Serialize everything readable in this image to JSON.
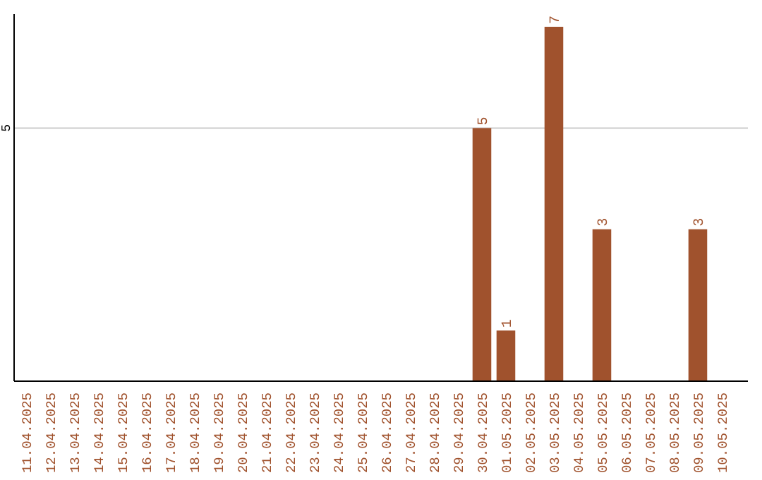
{
  "chart_data": {
    "type": "bar",
    "categories": [
      "11.04.2025",
      "12.04.2025",
      "13.04.2025",
      "14.04.2025",
      "15.04.2025",
      "16.04.2025",
      "17.04.2025",
      "18.04.2025",
      "19.04.2025",
      "20.04.2025",
      "21.04.2025",
      "22.04.2025",
      "23.04.2025",
      "24.04.2025",
      "25.04.2025",
      "26.04.2025",
      "27.04.2025",
      "28.04.2025",
      "29.04.2025",
      "30.04.2025",
      "01.05.2025",
      "02.05.2025",
      "03.05.2025",
      "04.05.2025",
      "05.05.2025",
      "06.05.2025",
      "07.05.2025",
      "08.05.2025",
      "09.05.2025",
      "10.05.2025"
    ],
    "values": [
      null,
      null,
      null,
      null,
      null,
      null,
      null,
      null,
      null,
      null,
      null,
      null,
      null,
      null,
      null,
      null,
      null,
      null,
      null,
      5,
      1,
      null,
      7,
      null,
      3,
      null,
      null,
      null,
      3,
      null
    ],
    "color": "#a0522d",
    "ylim": [
      0,
      7.25
    ],
    "yticks": [
      5
    ],
    "grid": "y",
    "data_labels": true
  }
}
